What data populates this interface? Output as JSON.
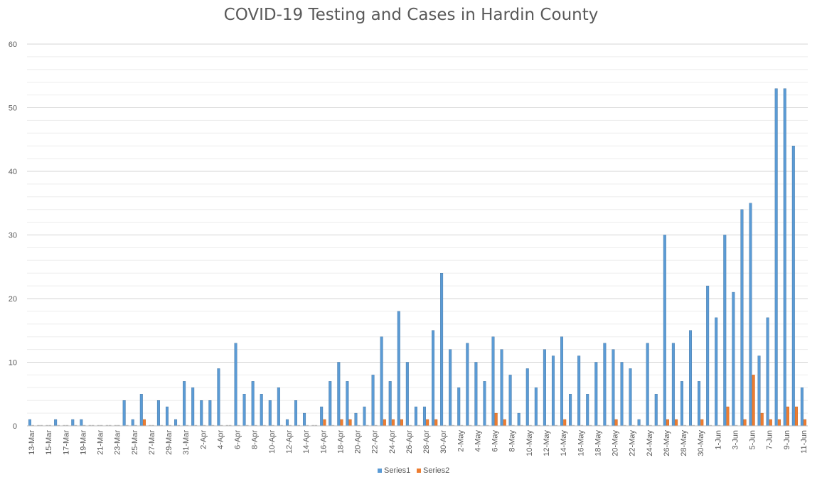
{
  "chart_data": {
    "type": "bar",
    "title": "COVID-19 Testing and Cases in Hardin County",
    "xlabel": "",
    "ylabel": "",
    "ylim": [
      0,
      60
    ],
    "yticks": [
      0,
      10,
      20,
      30,
      40,
      50,
      60
    ],
    "grid": true,
    "legend_position": "bottom",
    "categories": [
      "13-Mar",
      "14-Mar",
      "15-Mar",
      "16-Mar",
      "17-Mar",
      "18-Mar",
      "19-Mar",
      "20-Mar",
      "21-Mar",
      "22-Mar",
      "23-Mar",
      "24-Mar",
      "25-Mar",
      "26-Mar",
      "27-Mar",
      "28-Mar",
      "29-Mar",
      "30-Mar",
      "31-Mar",
      "1-Apr",
      "2-Apr",
      "3-Apr",
      "4-Apr",
      "5-Apr",
      "6-Apr",
      "7-Apr",
      "8-Apr",
      "9-Apr",
      "10-Apr",
      "11-Apr",
      "12-Apr",
      "13-Apr",
      "14-Apr",
      "15-Apr",
      "16-Apr",
      "17-Apr",
      "18-Apr",
      "19-Apr",
      "20-Apr",
      "21-Apr",
      "22-Apr",
      "23-Apr",
      "24-Apr",
      "25-Apr",
      "26-Apr",
      "27-Apr",
      "28-Apr",
      "29-Apr",
      "30-Apr",
      "1-May",
      "2-May",
      "3-May",
      "4-May",
      "5-May",
      "6-May",
      "7-May",
      "8-May",
      "9-May",
      "10-May",
      "11-May",
      "12-May",
      "13-May",
      "14-May",
      "15-May",
      "16-May",
      "17-May",
      "18-May",
      "19-May",
      "20-May",
      "21-May",
      "22-May",
      "23-May",
      "24-May",
      "25-May",
      "26-May",
      "27-May",
      "28-May",
      "29-May",
      "30-May",
      "31-May",
      "1-Jun",
      "2-Jun",
      "3-Jun",
      "4-Jun",
      "5-Jun",
      "6-Jun",
      "7-Jun",
      "8-Jun",
      "9-Jun",
      "10-Jun",
      "11-Jun"
    ],
    "series": [
      {
        "name": "Series1",
        "color": "#5b9bd5",
        "values": [
          1,
          0,
          0,
          1,
          0,
          1,
          1,
          0,
          0,
          0,
          0,
          4,
          1,
          5,
          0,
          4,
          3,
          1,
          7,
          6,
          4,
          4,
          9,
          0,
          13,
          5,
          7,
          5,
          4,
          6,
          1,
          4,
          2,
          0,
          3,
          7,
          10,
          7,
          2,
          3,
          8,
          14,
          7,
          18,
          10,
          3,
          3,
          15,
          24,
          12,
          6,
          13,
          10,
          7,
          14,
          12,
          8,
          2,
          9,
          6,
          12,
          11,
          14,
          5,
          11,
          5,
          10,
          13,
          12,
          10,
          9,
          1,
          13,
          5,
          30,
          13,
          7,
          15,
          7,
          22,
          17,
          30,
          21,
          34,
          35,
          11,
          17,
          53,
          53,
          44,
          6
        ]
      },
      {
        "name": "Series2",
        "color": "#ed7d31",
        "values": [
          0,
          0,
          0,
          0,
          0,
          0,
          0,
          0,
          0,
          0,
          0,
          0,
          0,
          1,
          0,
          0,
          0,
          0,
          0,
          0,
          0,
          0,
          0,
          0,
          0,
          0,
          0,
          0,
          0,
          0,
          0,
          0,
          0,
          0,
          1,
          0,
          1,
          1,
          0,
          0,
          0,
          1,
          1,
          1,
          0,
          0,
          1,
          1,
          0,
          0,
          0,
          0,
          0,
          0,
          2,
          1,
          0,
          0,
          0,
          0,
          0,
          0,
          1,
          0,
          0,
          0,
          0,
          0,
          1,
          0,
          0,
          0,
          0,
          0,
          1,
          1,
          0,
          0,
          1,
          0,
          0,
          3,
          0,
          1,
          8,
          2,
          1,
          1,
          3,
          3,
          1
        ]
      }
    ],
    "label_every": 2
  }
}
